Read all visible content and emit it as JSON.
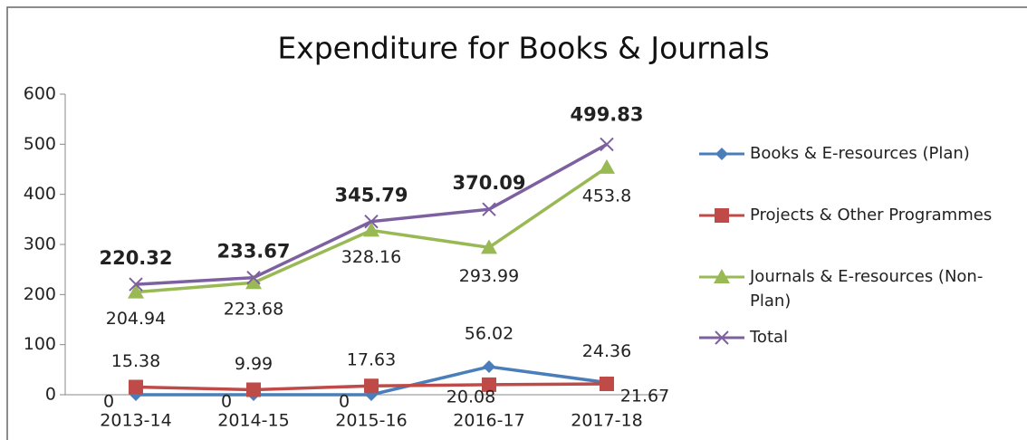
{
  "chart_data": {
    "type": "line",
    "title": "Expenditure for Books & Journals",
    "categories": [
      "2013-14",
      "2014-15",
      "2015-16",
      "2016-17",
      "2017-18"
    ],
    "series": [
      {
        "name": "Books & E-resources (Plan)",
        "color": "#4a7ebb",
        "marker": "diamond",
        "values": [
          0,
          0,
          0,
          56.02,
          24.36
        ]
      },
      {
        "name": "Projects & Other Programmes",
        "color": "#be4b48",
        "marker": "square",
        "values": [
          15.38,
          9.99,
          17.63,
          20.08,
          21.67
        ]
      },
      {
        "name": "Journals & E-resources (Non-Plan)",
        "color": "#98b954",
        "marker": "triangle",
        "values": [
          204.94,
          223.68,
          328.16,
          293.99,
          453.8
        ]
      },
      {
        "name": "Total",
        "color": "#7d60a0",
        "marker": "x",
        "values": [
          220.32,
          233.67,
          345.79,
          370.09,
          499.83
        ]
      }
    ],
    "ylim": [
      0,
      600
    ],
    "yticks": [
      0,
      100,
      200,
      300,
      400,
      500,
      600
    ],
    "legend": "right"
  }
}
